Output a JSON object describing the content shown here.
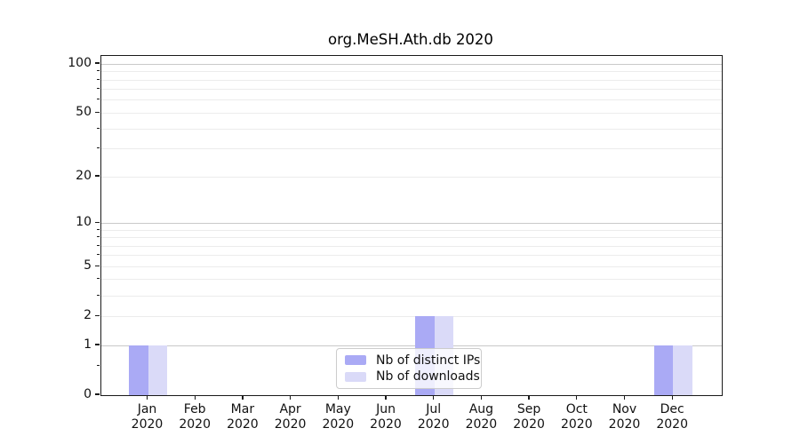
{
  "title": "org.MeSH.Ath.db 2020",
  "chart_data": {
    "type": "bar",
    "title": "org.MeSH.Ath.db 2020",
    "scale": "log1p",
    "grid": "horizontal",
    "legend_position": "lower center",
    "categories": [
      "Jan 2020",
      "Feb 2020",
      "Mar 2020",
      "Apr 2020",
      "May 2020",
      "Jun 2020",
      "Jul 2020",
      "Aug 2020",
      "Sep 2020",
      "Oct 2020",
      "Nov 2020",
      "Dec 2020"
    ],
    "series": [
      {
        "name": "Nb of distinct IPs",
        "key": "distinct-ips",
        "color": "#aaaaf5",
        "values": [
          1,
          0,
          0,
          0,
          0,
          0,
          2,
          0,
          0,
          0,
          0,
          1
        ]
      },
      {
        "name": "Nb of downloads",
        "key": "downloads",
        "color": "#dadaf8",
        "values": [
          1,
          0,
          0,
          0,
          0,
          0,
          2,
          0,
          0,
          0,
          0,
          1
        ]
      }
    ],
    "yticks": [
      0,
      1,
      2,
      5,
      10,
      20,
      50,
      100
    ],
    "minor_yticks": [
      0.5,
      2,
      3,
      4,
      5,
      6,
      7,
      8,
      9,
      20,
      30,
      40,
      50,
      60,
      70,
      80,
      90
    ],
    "gridlines": {
      "major": [
        1,
        10,
        100
      ],
      "minor": [
        2,
        3,
        4,
        5,
        6,
        7,
        8,
        9,
        20,
        30,
        40,
        50,
        60,
        70,
        80,
        90
      ]
    },
    "ylim": [
      0,
      112
    ],
    "xlabel": "",
    "ylabel": ""
  },
  "colors": {
    "bar_distinct_ips": "#aaaaf5",
    "bar_downloads": "#dadaf8",
    "grid_major": "#c9c9c9",
    "grid_minor": "#ececec",
    "spine": "#1a1a1a"
  }
}
